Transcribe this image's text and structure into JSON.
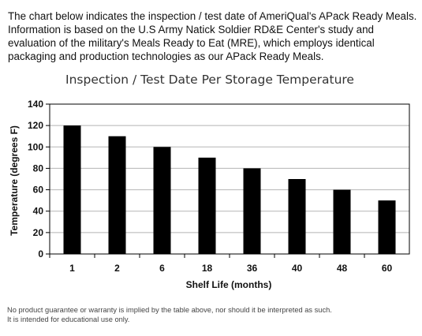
{
  "intro": "The chart below indicates the inspection / test date of AmeriQual's APack Ready Meals. Information is based on the U.S Army Natick Soldier RD&E Center's study and evaluation of the military's Meals Ready to Eat (MRE), which employs identical packaging and production technologies as our APack Ready Meals.",
  "chart_data": {
    "type": "bar",
    "title": "Inspection / Test Date Per Storage Temperature",
    "xlabel": "Shelf Life (months)",
    "ylabel": "Temperature (degrees F)",
    "categories": [
      "1",
      "2",
      "6",
      "18",
      "36",
      "40",
      "48",
      "60"
    ],
    "values": [
      120,
      110,
      100,
      90,
      80,
      70,
      60,
      50
    ],
    "ylim": [
      0,
      140
    ],
    "yticks": [
      "0",
      "20",
      "40",
      "60",
      "80",
      "100",
      "120",
      "140"
    ],
    "grid": true,
    "legend": "none",
    "bar_color": "#000000"
  },
  "footer": {
    "line1": "No product guarantee or warranty is implied by the table above, nor should it be interpreted as such.",
    "line2": "It is intended for educational use only."
  }
}
